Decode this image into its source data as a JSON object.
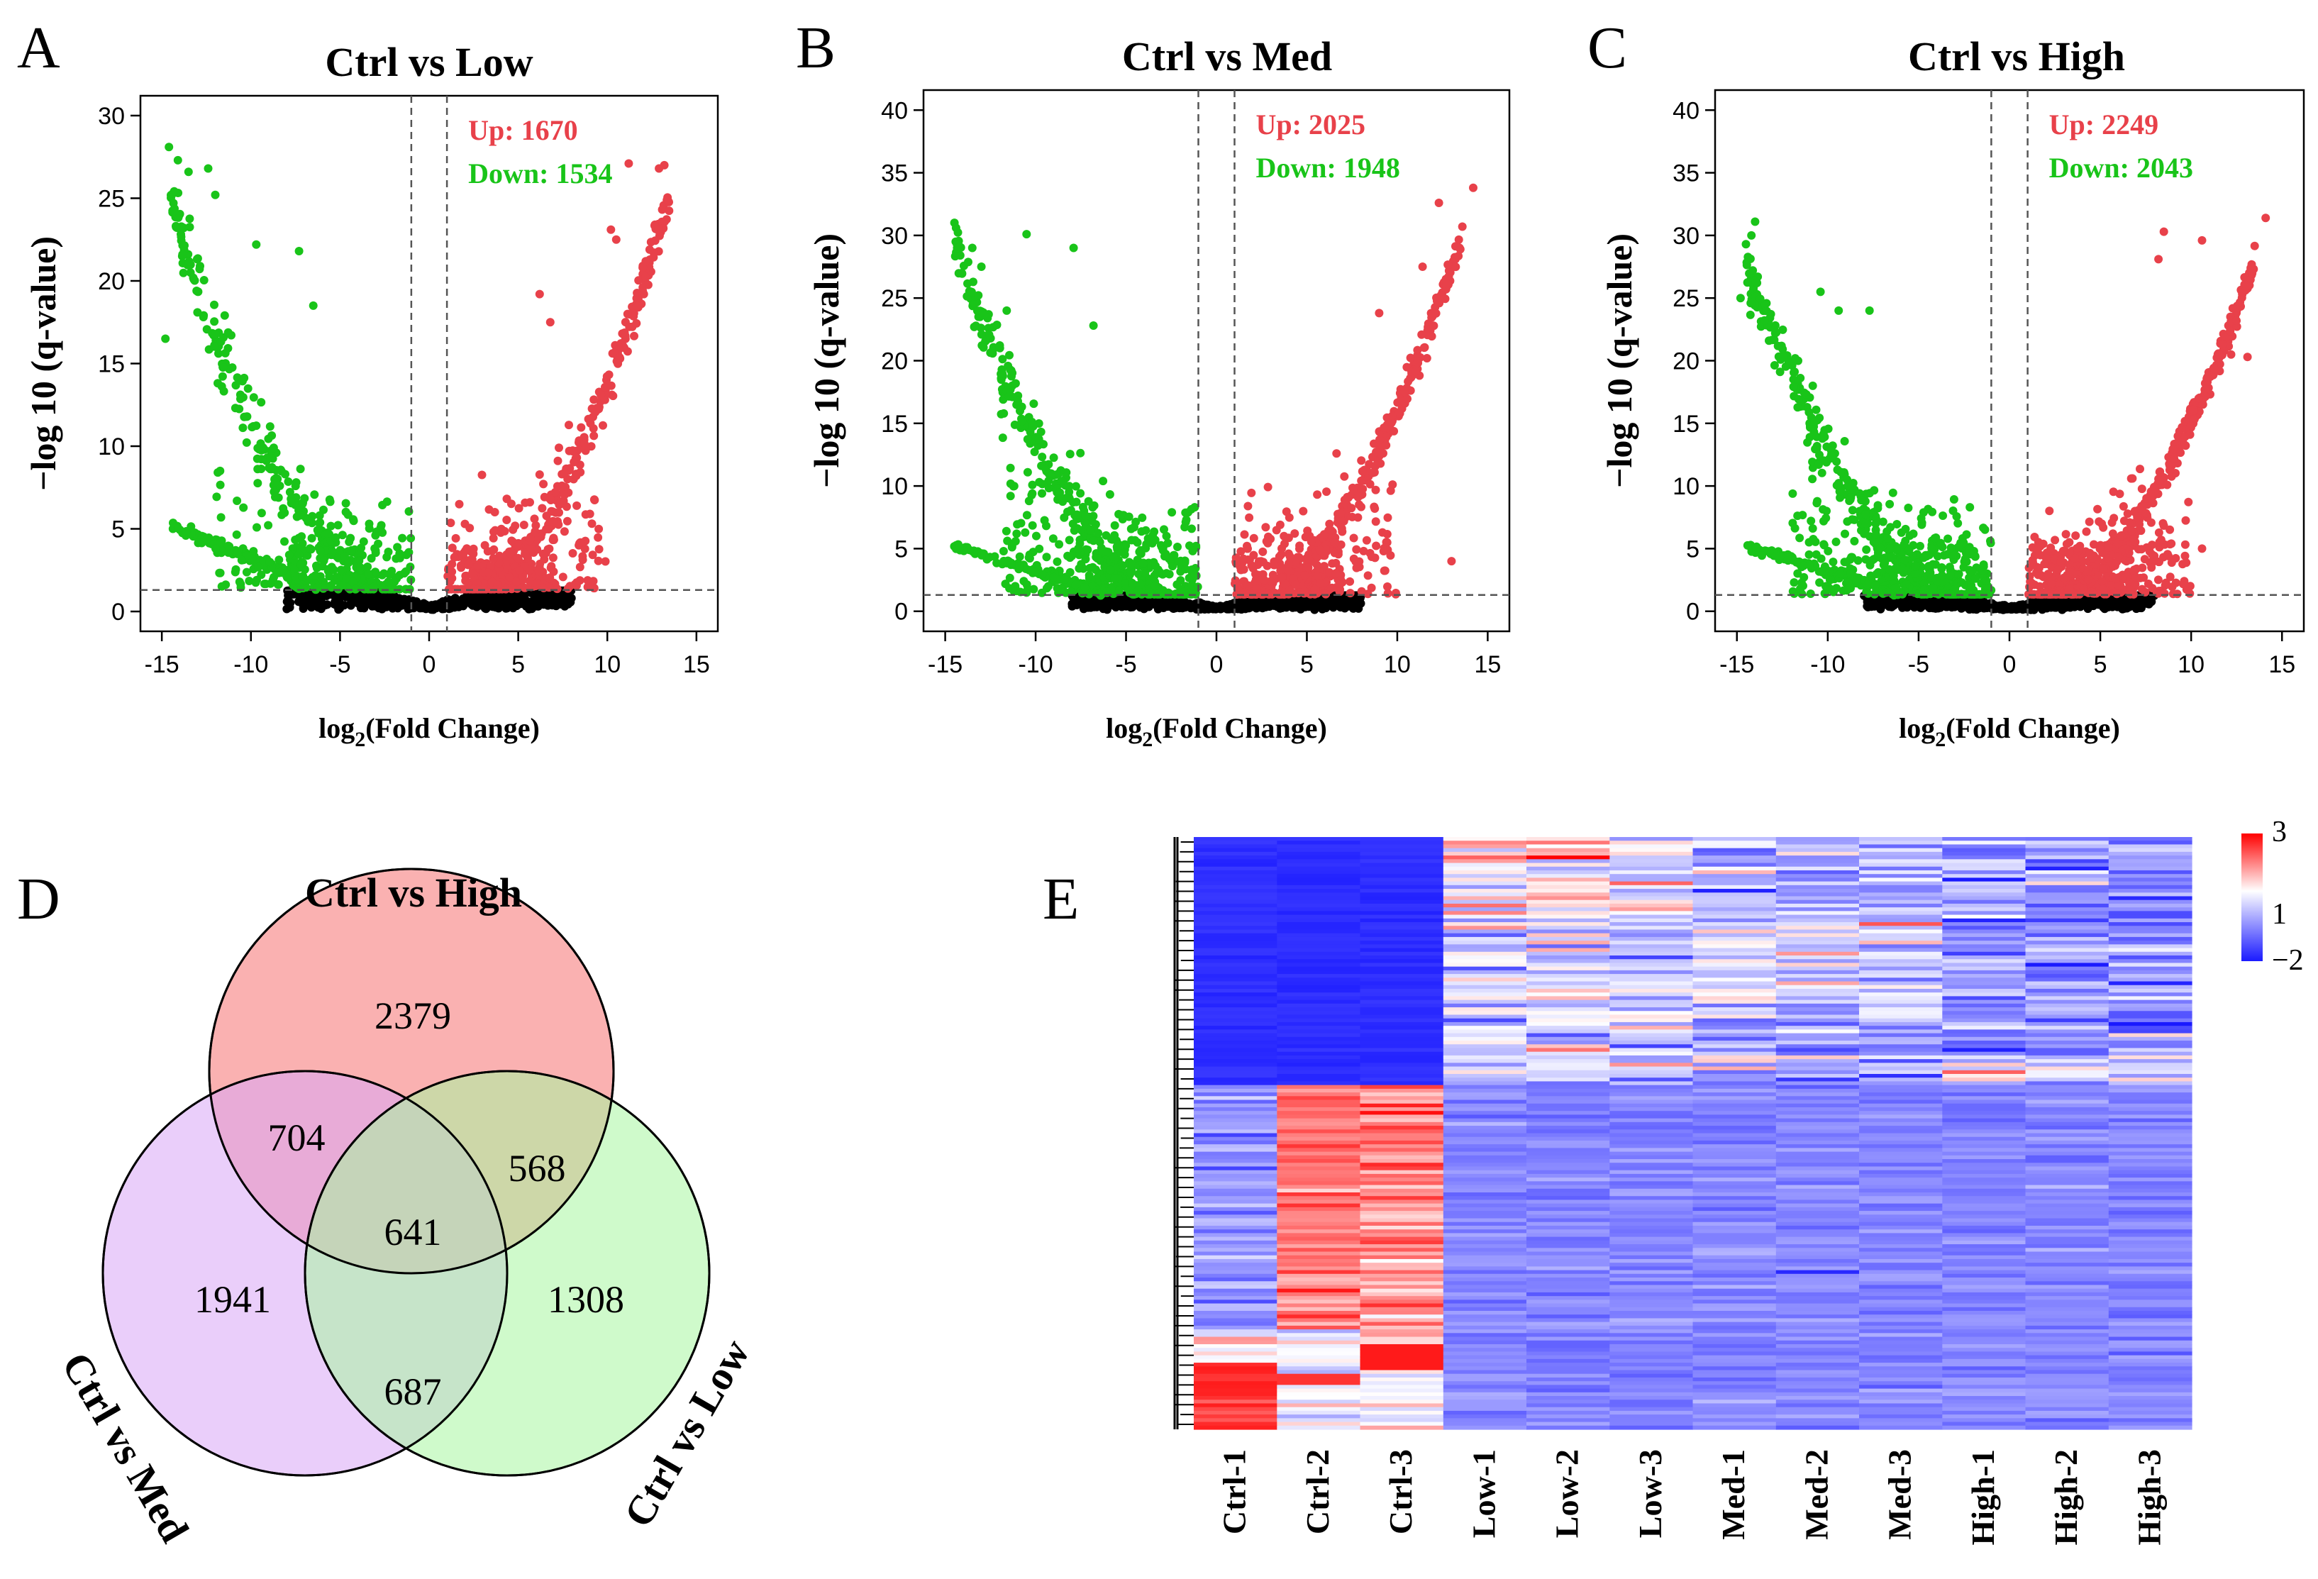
{
  "colors": {
    "up": "#e8414a",
    "down": "#19c419",
    "ns": "#000000",
    "venn_high": "#f9a3a3",
    "venn_med": "#d9a6f5",
    "venn_low": "#a8f5a0",
    "heat_low": "#1a1aff",
    "heat_mid": "#ffffff",
    "heat_high": "#ff0000"
  },
  "chart_data": [
    {
      "panel": "A",
      "type": "scatter",
      "title": "Ctrl vs Low",
      "xlabel_main": "log",
      "xlabel_sub": "2",
      "xlabel_rest": "(Fold Change)",
      "ylabel": "−log 10 (q-value)",
      "xlim": [
        -15,
        15
      ],
      "ylim": [
        0,
        30
      ],
      "xticks": [
        -15,
        -10,
        -5,
        0,
        5,
        10,
        15
      ],
      "xtick_labels": [
        "-15",
        "-10",
        "-5",
        "0",
        "5",
        "10",
        "15"
      ],
      "yticks": [
        0,
        5,
        10,
        15,
        20,
        25,
        30
      ],
      "ytick_labels": [
        "0",
        "5",
        "10",
        "15",
        "20",
        "25",
        "30"
      ],
      "thresholds": {
        "fc": 1,
        "q": 1.3
      },
      "up_label": "Up: 1670",
      "down_label": "Down: 1534",
      "up_count": 1670,
      "down_count": 1534,
      "max_y": 28,
      "outliers_up": [
        [
          13.2,
          27
        ],
        [
          12.9,
          26.8
        ],
        [
          10.5,
          22.5
        ],
        [
          6.2,
          19.2
        ],
        [
          6.8,
          17.5
        ],
        [
          10.2,
          23.1
        ],
        [
          11.2,
          27.1
        ]
      ],
      "outliers_down": [
        [
          -14.6,
          28.1
        ],
        [
          -14.1,
          27.3
        ],
        [
          -13.5,
          26.6
        ],
        [
          -12.4,
          26.8
        ],
        [
          -9.7,
          22.2
        ],
        [
          -7.3,
          21.8
        ],
        [
          -14.8,
          16.5
        ],
        [
          -6.5,
          18.5
        ],
        [
          -12.0,
          25.2
        ]
      ]
    },
    {
      "panel": "B",
      "type": "scatter",
      "title": "Ctrl vs Med",
      "xlabel_main": "log",
      "xlabel_sub": "2",
      "xlabel_rest": "(Fold Change)",
      "ylabel": "−log 10 (q-value)",
      "xlim": [
        -15,
        15
      ],
      "ylim": [
        0,
        40
      ],
      "xticks": [
        -15,
        -10,
        -5,
        0,
        5,
        10,
        15
      ],
      "xtick_labels": [
        "-15",
        "-10",
        "-5",
        "0",
        "5",
        "10",
        "15"
      ],
      "yticks": [
        0,
        5,
        10,
        15,
        20,
        25,
        30,
        35,
        40
      ],
      "ytick_labels": [
        "0",
        "5",
        "10",
        "15",
        "20",
        "25",
        "30",
        "35",
        "40"
      ],
      "thresholds": {
        "fc": 1,
        "q": 1.3
      },
      "up_label": "Up: 2025",
      "down_label": "Down: 1948",
      "up_count": 2025,
      "down_count": 1948,
      "max_y": 33,
      "outliers_up": [
        [
          14.2,
          33.8
        ],
        [
          12.3,
          32.6
        ],
        [
          13.6,
          30.7
        ],
        [
          11.4,
          27.5
        ],
        [
          9.0,
          23.8
        ],
        [
          13.0,
          4.0
        ]
      ],
      "outliers_down": [
        [
          -14.4,
          30.6
        ],
        [
          -13.5,
          29.0
        ],
        [
          -10.5,
          30.1
        ],
        [
          -7.9,
          29.0
        ],
        [
          -13.0,
          27.5
        ],
        [
          -11.6,
          24.0
        ],
        [
          -6.8,
          22.8
        ]
      ]
    },
    {
      "panel": "C",
      "type": "scatter",
      "title": "Ctrl vs High",
      "xlabel_main": "log",
      "xlabel_sub": "2",
      "xlabel_rest": "(Fold Change)",
      "ylabel": "−log 10 (q-value)",
      "xlim": [
        -15,
        15
      ],
      "ylim": [
        0,
        40
      ],
      "xticks": [
        -15,
        -10,
        -5,
        0,
        5,
        10,
        15
      ],
      "xtick_labels": [
        "-15",
        "-10",
        "-5",
        "0",
        "5",
        "10",
        "15"
      ],
      "yticks": [
        0,
        5,
        10,
        15,
        20,
        25,
        30,
        35,
        40
      ],
      "ytick_labels": [
        "0",
        "5",
        "10",
        "15",
        "20",
        "25",
        "30",
        "35",
        "40"
      ],
      "thresholds": {
        "fc": 1,
        "q": 1.3
      },
      "up_label": "Up: 2249",
      "down_label": "Down: 2043",
      "up_count": 2249,
      "down_count": 2043,
      "max_y": 31,
      "outliers_up": [
        [
          14.1,
          31.4
        ],
        [
          8.5,
          30.3
        ],
        [
          10.6,
          29.6
        ],
        [
          8.2,
          28.1
        ],
        [
          13.1,
          20.3
        ],
        [
          12.2,
          20.5
        ],
        [
          10.6,
          5.0
        ]
      ],
      "outliers_down": [
        [
          -14.0,
          31.1
        ],
        [
          -14.2,
          30.0
        ],
        [
          -14.5,
          29.3
        ],
        [
          -10.4,
          25.5
        ],
        [
          -9.4,
          24.0
        ],
        [
          -7.7,
          24.0
        ],
        [
          -14.8,
          25.0
        ]
      ]
    },
    {
      "panel": "D",
      "type": "venn",
      "sets": [
        "Ctrl vs High",
        "Ctrl vs Med",
        "Ctrl vs Low"
      ],
      "regions": [
        {
          "name": "High only",
          "value": 2379
        },
        {
          "name": "High and Med",
          "value": 704
        },
        {
          "name": "High and Low",
          "value": 568
        },
        {
          "name": "All three",
          "value": 641
        },
        {
          "name": "Med only",
          "value": 1941
        },
        {
          "name": "Low only",
          "value": 1308
        },
        {
          "name": "Med and Low",
          "value": 687
        }
      ]
    },
    {
      "panel": "E",
      "type": "heatmap",
      "columns": [
        "Ctrl-1",
        "Ctrl-2",
        "Ctrl-3",
        "Low-1",
        "Low-2",
        "Low-3",
        "Med-1",
        "Med-2",
        "Med-3",
        "High-1",
        "High-2",
        "High-3"
      ],
      "legend": {
        "max": 3,
        "mid": 1,
        "min": -2,
        "labels": [
          "3",
          "1",
          "−2"
        ]
      },
      "cluster_fraction_top": 0.42
    }
  ]
}
